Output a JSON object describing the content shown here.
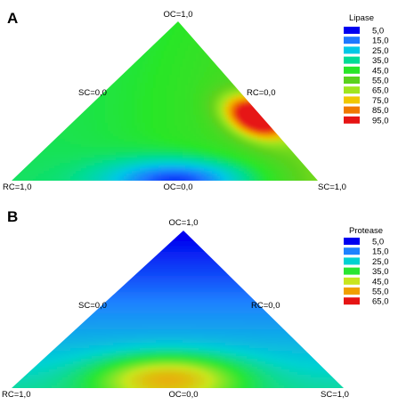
{
  "chart_data": [
    {
      "type": "heatmap",
      "panel": "A",
      "vertex_labels": {
        "top": "OC=1,0",
        "left": "RC=1,0",
        "right": "SC=1,0"
      },
      "edge_labels": {
        "left": "SC=0,0",
        "right": "RC=0,0",
        "bottom": "OC=0,0"
      },
      "legend": {
        "title": "Lipase",
        "placement": "right",
        "entries": [
          {
            "label": "5,0",
            "value": 5,
            "color": "#0000f0"
          },
          {
            "label": "15,0",
            "value": 15,
            "color": "#1e78ff"
          },
          {
            "label": "25,0",
            "value": 25,
            "color": "#00c8e6"
          },
          {
            "label": "35,0",
            "value": 35,
            "color": "#00dc96"
          },
          {
            "label": "45,0",
            "value": 45,
            "color": "#28e628"
          },
          {
            "label": "55,0",
            "value": 55,
            "color": "#5ad21e"
          },
          {
            "label": "65,0",
            "value": 65,
            "color": "#a0e61e"
          },
          {
            "label": "75,0",
            "value": 75,
            "color": "#f0c800"
          },
          {
            "label": "85,0",
            "value": 85,
            "color": "#f07800"
          },
          {
            "label": "95,0",
            "value": 95,
            "color": "#e61414"
          }
        ]
      }
    },
    {
      "type": "heatmap",
      "panel": "B",
      "vertex_labels": {
        "top": "OC=1,0",
        "left": "RC=1,0",
        "right": "SC=1,0"
      },
      "edge_labels": {
        "left": "SC=0,0",
        "right": "RC=0,0",
        "bottom": "OC=0,0"
      },
      "legend": {
        "title": "Protease",
        "placement": "right",
        "entries": [
          {
            "label": "5,0",
            "value": 5,
            "color": "#0000f0"
          },
          {
            "label": "15,0",
            "value": 15,
            "color": "#1e82ff"
          },
          {
            "label": "25,0",
            "value": 25,
            "color": "#00d2d2"
          },
          {
            "label": "35,0",
            "value": 35,
            "color": "#28e632"
          },
          {
            "label": "45,0",
            "value": 45,
            "color": "#c8e61e"
          },
          {
            "label": "55,0",
            "value": 55,
            "color": "#f0a000"
          },
          {
            "label": "65,0",
            "value": 65,
            "color": "#e61414"
          }
        ]
      }
    }
  ]
}
